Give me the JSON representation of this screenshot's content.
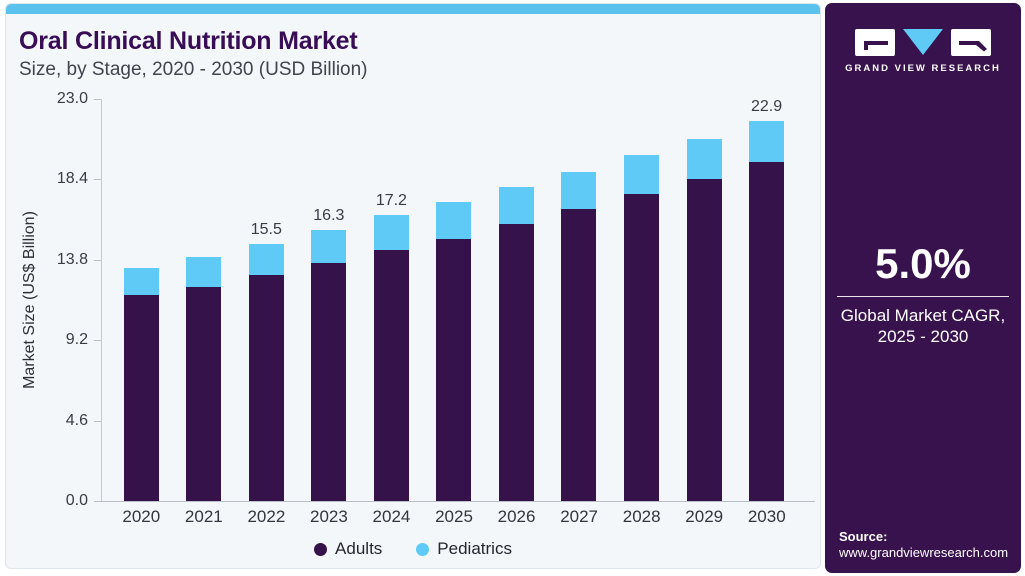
{
  "header": {
    "title": "Oral Clinical Nutrition Market",
    "subtitle": "Size, by Stage, 2020 - 2030 (USD Billion)"
  },
  "chart_data": {
    "type": "bar",
    "stacked": true,
    "title": "Oral Clinical Nutrition Market Size, by Stage, 2020 - 2030 (USD Billion)",
    "xlabel": "",
    "ylabel": "Market Size (US$ Billion)",
    "categories": [
      "2020",
      "2021",
      "2022",
      "2023",
      "2024",
      "2025",
      "2026",
      "2027",
      "2028",
      "2029",
      "2030"
    ],
    "series": [
      {
        "name": "Adults",
        "color": "#36124B",
        "values": [
          12.4,
          12.9,
          13.6,
          14.3,
          15.1,
          15.8,
          16.7,
          17.6,
          18.5,
          19.4,
          20.4
        ]
      },
      {
        "name": "Pediatrics",
        "color": "#5ECAF5",
        "values": [
          1.6,
          1.8,
          1.9,
          2.0,
          2.1,
          2.2,
          2.2,
          2.2,
          2.3,
          2.4,
          2.5
        ]
      }
    ],
    "totals": [
      14.0,
      14.7,
      15.5,
      16.3,
      17.2,
      18.0,
      18.9,
      19.8,
      20.8,
      21.8,
      22.9
    ],
    "bar_labels": [
      "",
      "",
      "15.5",
      "16.3",
      "17.2",
      "",
      "",
      "",
      "",
      "",
      "22.9"
    ],
    "yticks": [
      "23.0",
      "18.4",
      "13.8",
      "9.2",
      "4.6",
      "0.0"
    ],
    "ylim": [
      0,
      23.0
    ],
    "render_ymax": 24.2,
    "grid": false,
    "legend_position": "bottom"
  },
  "legend": {
    "items": [
      {
        "label": "Adults",
        "color": "#36124B"
      },
      {
        "label": "Pediatrics",
        "color": "#5ECAF5"
      }
    ]
  },
  "sidebar": {
    "logo_text": "GRAND VIEW RESEARCH",
    "cagr_value": "5.0%",
    "cagr_label_line1": "Global Market CAGR,",
    "cagr_label_line2": "2025 - 2030",
    "source_label": "Source:",
    "source_url": "www.grandviewresearch.com"
  },
  "colors": {
    "card_background": "#f3f7fa",
    "top_strip": "#5BC2EE",
    "title_text": "#380D56",
    "panel_background": "#38124D",
    "adults": "#36124B",
    "pediatrics": "#5ECAF5"
  }
}
